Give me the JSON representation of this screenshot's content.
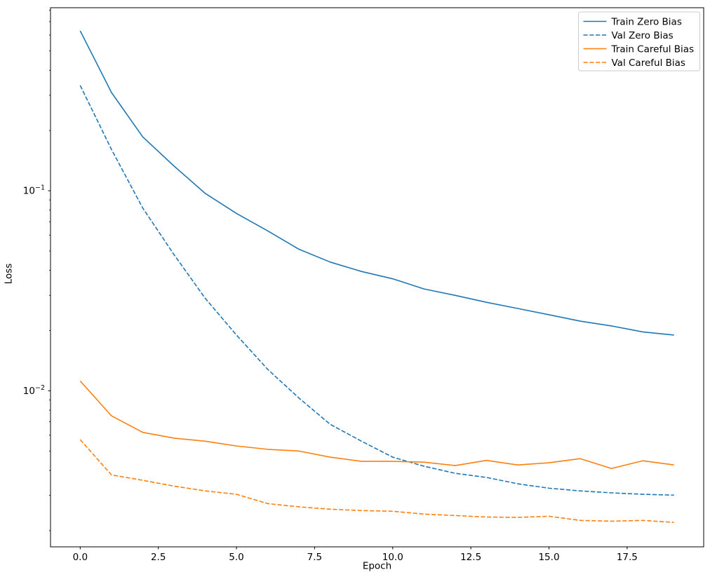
{
  "figure": {
    "background": "#ffffff"
  },
  "chart_data": {
    "type": "line",
    "title": "",
    "xlabel": "Epoch",
    "ylabel": "Loss",
    "yscale": "log",
    "grid": false,
    "legend_position": "upper right",
    "legend_border_color": "#cccccc",
    "axis_color": "#000000",
    "xlim": [
      -0.95,
      19.95
    ],
    "ylim": [
      0.00166,
      0.822
    ],
    "x": [
      0,
      1,
      2,
      3,
      4,
      5,
      6,
      7,
      8,
      9,
      10,
      11,
      12,
      13,
      14,
      15,
      16,
      17,
      18,
      19
    ],
    "xticks": {
      "values": [
        0,
        2.5,
        5,
        7.5,
        10,
        12.5,
        15,
        17.5
      ],
      "labels": [
        "0.0",
        "2.5",
        "5.0",
        "7.5",
        "10.0",
        "12.5",
        "15.0",
        "17.5"
      ]
    },
    "yticks": [
      {
        "value": 0.1,
        "base": "10",
        "exponent": "−1"
      },
      {
        "value": 0.01,
        "base": "10",
        "exponent": "−2"
      }
    ],
    "series": [
      {
        "name": "Train Zero Bias",
        "color": "#1f77b4",
        "style": "solid",
        "values": [
          0.63,
          0.31,
          0.186,
          0.133,
          0.097,
          0.077,
          0.063,
          0.051,
          0.044,
          0.0395,
          0.0363,
          0.0323,
          0.03,
          0.0277,
          0.0258,
          0.024,
          0.0223,
          0.0211,
          0.0197,
          0.019
        ]
      },
      {
        "name": "Val Zero Bias",
        "color": "#1f77b4",
        "style": "dashed",
        "values": [
          0.336,
          0.161,
          0.082,
          0.048,
          0.029,
          0.019,
          0.0128,
          0.0092,
          0.0068,
          0.0056,
          0.00466,
          0.0042,
          0.00387,
          0.00369,
          0.00343,
          0.00326,
          0.00316,
          0.00309,
          0.00304,
          0.00301
        ]
      },
      {
        "name": "Train Careful Bias",
        "color": "#ff7f0e",
        "style": "solid",
        "values": [
          0.0112,
          0.0075,
          0.0062,
          0.0058,
          0.0056,
          0.0053,
          0.0051,
          0.005,
          0.00466,
          0.00444,
          0.00444,
          0.0044,
          0.00423,
          0.00449,
          0.00426,
          0.00437,
          0.00458,
          0.00409,
          0.00447,
          0.00426
        ]
      },
      {
        "name": "Val Careful Bias",
        "color": "#ff7f0e",
        "style": "dashed",
        "values": [
          0.0057,
          0.0038,
          0.00357,
          0.00334,
          0.00316,
          0.00304,
          0.00273,
          0.00263,
          0.00256,
          0.00252,
          0.0025,
          0.00242,
          0.00238,
          0.00234,
          0.00233,
          0.00236,
          0.00225,
          0.00223,
          0.00225,
          0.0022
        ]
      }
    ]
  }
}
